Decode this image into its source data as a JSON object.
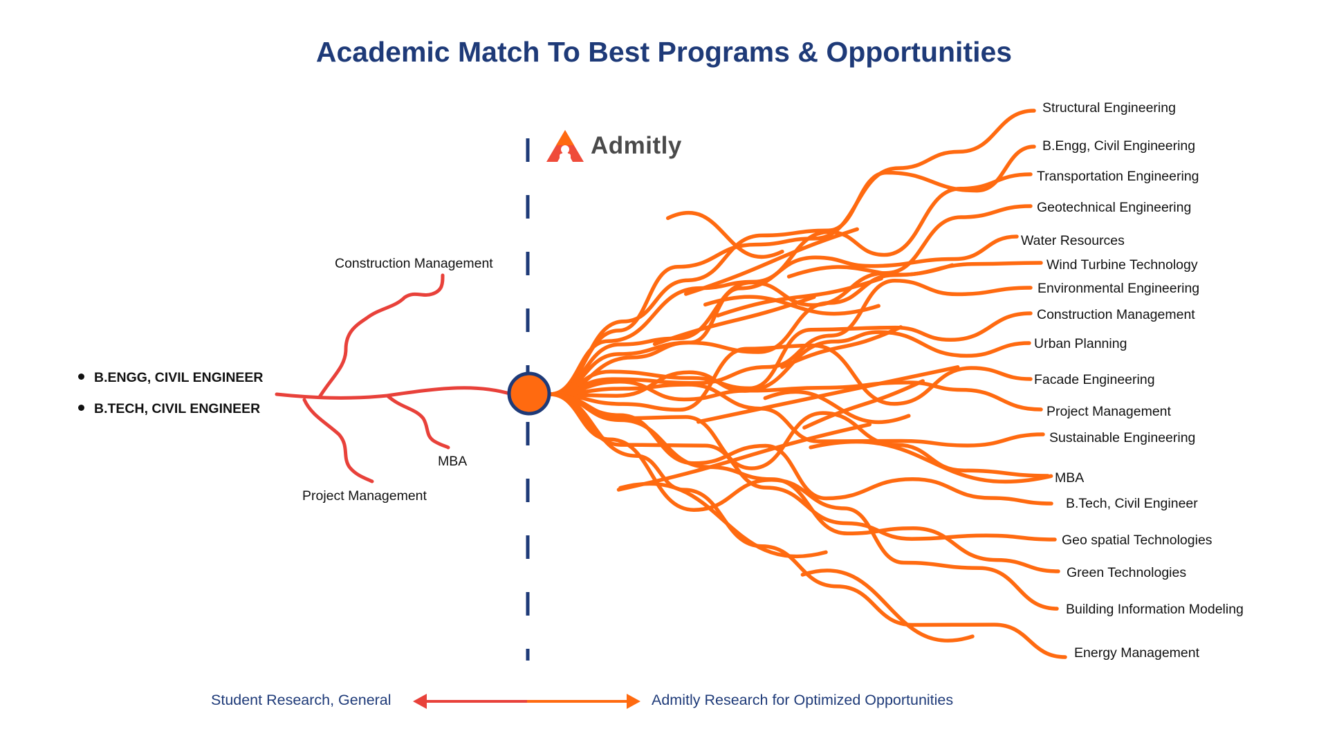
{
  "title": "Academic Match To Best Programs & Opportunities",
  "brand": {
    "name": "Admitly",
    "logo_icon": "admitly-logo-icon"
  },
  "degrees": [
    "B.ENGG, CIVIL ENGINEER",
    "B.TECH, CIVIL ENGINEER"
  ],
  "general_options": [
    "Construction Management",
    "MBA",
    "Project Management"
  ],
  "optimized_opportunities": [
    "Structural Engineering",
    "B.Engg, Civil Engineering",
    "Transportation Engineering",
    "Geotechnical Engineering",
    "Water Resources",
    "Wind Turbine Technology",
    "Environmental Engineering",
    "Construction Management",
    "Urban Planning",
    "Facade Engineering",
    "Project Management",
    "Sustainable Engineering",
    "MBA",
    "B.Tech, Civil Engineer",
    "Geo spatial Technologies",
    "Green Technologies",
    "Building Information Modeling",
    "Energy Management"
  ],
  "legend": {
    "left": "Student Research, General",
    "right": "Admitly Research for Optimized Opportunities"
  },
  "colors": {
    "title": "#1e3a78",
    "general_branch": "#e8413a",
    "optimized_branch": "#ff6a10",
    "hub_fill": "#ff6a10",
    "hub_stroke": "#1e3a78",
    "divider": "#1e3a78"
  }
}
